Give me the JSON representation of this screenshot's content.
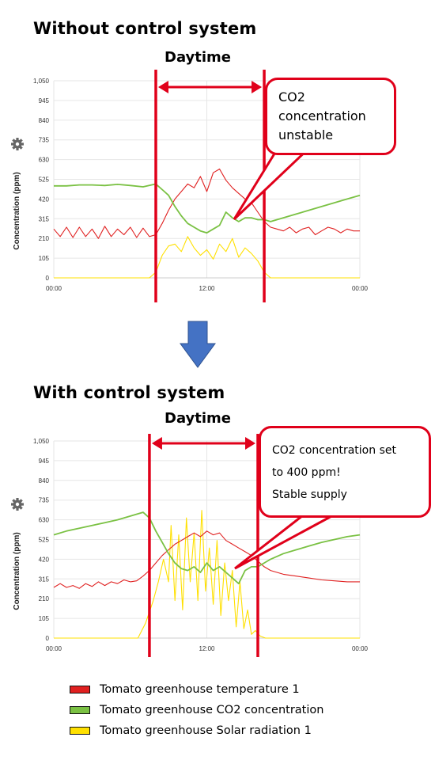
{
  "chart_data": [
    {
      "type": "line",
      "title": "Without control system",
      "annotation_top": "Daytime",
      "callout": "CO2 concentration unstable",
      "ylabel": "Concentration (ppm)",
      "yticks": [
        "0",
        "105",
        "210",
        "315",
        "420",
        "525",
        "630",
        "735",
        "840",
        "945",
        "1,050"
      ],
      "ylim": [
        0,
        1050
      ],
      "xticks": [
        "00:00",
        "12:00",
        "00:00"
      ],
      "xlim_hours": [
        0,
        24
      ],
      "daytime_hours": [
        8,
        16.5
      ],
      "series": [
        {
          "name": "Tomato greenhouse temperature 1",
          "color": "#e02020",
          "x": [
            0,
            0.5,
            1,
            1.5,
            2,
            2.5,
            3,
            3.5,
            4,
            4.5,
            5,
            5.5,
            6,
            6.5,
            7,
            7.5,
            8,
            8.5,
            9,
            9.5,
            10,
            10.5,
            11,
            11.5,
            12,
            12.5,
            13,
            13.5,
            14,
            14.5,
            15,
            15.5,
            16,
            16.5,
            17,
            17.5,
            18,
            18.5,
            19,
            19.5,
            20,
            20.5,
            21,
            21.5,
            22,
            22.5,
            23,
            23.5,
            24
          ],
          "y": [
            260,
            220,
            270,
            215,
            270,
            220,
            260,
            210,
            275,
            220,
            260,
            230,
            270,
            215,
            265,
            220,
            230,
            290,
            360,
            420,
            460,
            500,
            480,
            540,
            460,
            560,
            580,
            520,
            480,
            450,
            420,
            400,
            350,
            300,
            270,
            260,
            250,
            270,
            240,
            260,
            270,
            230,
            250,
            270,
            260,
            240,
            260,
            250,
            250
          ]
        },
        {
          "name": "Tomato greenhouse CO2 concentration",
          "color": "#7ac143",
          "x": [
            0,
            1,
            2,
            3,
            4,
            5,
            6,
            7,
            8,
            8.5,
            9,
            9.5,
            10,
            10.5,
            11,
            11.5,
            12,
            12.5,
            13,
            13.5,
            14,
            14.5,
            15,
            15.5,
            16,
            16.5,
            17,
            18,
            19,
            20,
            21,
            22,
            23,
            24
          ],
          "y": [
            490,
            490,
            495,
            495,
            492,
            498,
            492,
            485,
            500,
            470,
            440,
            380,
            330,
            290,
            270,
            250,
            240,
            260,
            280,
            350,
            320,
            300,
            320,
            320,
            310,
            310,
            300,
            320,
            340,
            360,
            380,
            400,
            420,
            440
          ]
        },
        {
          "name": "Tomato greenhouse Solar radiation 1",
          "color": "#ffe000",
          "x": [
            0,
            7.5,
            8,
            8.5,
            9,
            9.5,
            10,
            10.5,
            11,
            11.5,
            12,
            12.5,
            13,
            13.5,
            14,
            14.5,
            15,
            15.5,
            16,
            16.5,
            17,
            24
          ],
          "y": [
            0,
            0,
            30,
            120,
            170,
            180,
            140,
            220,
            160,
            120,
            150,
            100,
            180,
            140,
            210,
            110,
            160,
            130,
            90,
            30,
            0,
            0
          ]
        }
      ]
    },
    {
      "type": "line",
      "title": "With control system",
      "annotation_top": "Daytime",
      "callout_lines": [
        "CO2 concentration set",
        "to 400 ppm!",
        "Stable supply"
      ],
      "ylabel": "Concentration (ppm)",
      "yticks": [
        "0",
        "105",
        "210",
        "315",
        "420",
        "525",
        "630",
        "735",
        "840",
        "945",
        "1,050"
      ],
      "ylim": [
        0,
        1050
      ],
      "xticks": [
        "00:00",
        "12:00",
        "00:00"
      ],
      "xlim_hours": [
        0,
        24
      ],
      "daytime_hours": [
        7.5,
        16
      ],
      "series": [
        {
          "name": "Tomato greenhouse temperature 1",
          "color": "#e02020",
          "x": [
            0,
            0.5,
            1,
            1.5,
            2,
            2.5,
            3,
            3.5,
            4,
            4.5,
            5,
            5.5,
            6,
            6.5,
            7,
            7.5,
            8,
            8.5,
            9,
            9.5,
            10,
            10.5,
            11,
            11.5,
            12,
            12.5,
            13,
            13.5,
            14,
            14.5,
            15,
            15.5,
            16,
            16.5,
            17,
            18,
            19,
            20,
            21,
            22,
            23,
            24
          ],
          "y": [
            270,
            290,
            270,
            280,
            265,
            290,
            275,
            300,
            280,
            300,
            290,
            310,
            300,
            305,
            330,
            360,
            400,
            440,
            470,
            500,
            520,
            540,
            560,
            540,
            570,
            550,
            560,
            520,
            500,
            480,
            460,
            440,
            410,
            380,
            360,
            340,
            330,
            320,
            310,
            305,
            300,
            300
          ]
        },
        {
          "name": "Tomato greenhouse CO2 concentration",
          "color": "#7ac143",
          "x": [
            0,
            1,
            2,
            3,
            4,
            5,
            6,
            6.5,
            7,
            7.5,
            8,
            8.5,
            9,
            9.5,
            10,
            10.5,
            11,
            11.5,
            12,
            12.5,
            13,
            13.5,
            14,
            14.5,
            15,
            15.5,
            16,
            17,
            18,
            19,
            20,
            21,
            22,
            23,
            24
          ],
          "y": [
            550,
            570,
            585,
            600,
            615,
            630,
            650,
            660,
            670,
            640,
            570,
            510,
            450,
            400,
            370,
            360,
            380,
            350,
            400,
            360,
            380,
            350,
            320,
            290,
            360,
            380,
            380,
            420,
            450,
            470,
            490,
            510,
            525,
            540,
            550
          ]
        },
        {
          "name": "Tomato greenhouse Solar radiation 1",
          "color": "#ffe000",
          "x": [
            0,
            6.6,
            7.2,
            7.8,
            8.2,
            8.6,
            9.0,
            9.2,
            9.5,
            9.8,
            10.1,
            10.4,
            10.7,
            11.0,
            11.3,
            11.6,
            11.9,
            12.2,
            12.5,
            12.8,
            13.1,
            13.4,
            13.7,
            14.0,
            14.3,
            14.6,
            14.9,
            15.2,
            15.5,
            15.8,
            16.2,
            16.6,
            24
          ],
          "y": [
            0,
            0,
            80,
            200,
            300,
            420,
            300,
            600,
            200,
            550,
            150,
            640,
            300,
            560,
            200,
            680,
            250,
            480,
            180,
            520,
            120,
            400,
            200,
            360,
            60,
            300,
            50,
            150,
            20,
            40,
            10,
            0,
            0
          ]
        }
      ]
    }
  ],
  "legend": [
    {
      "label": "Tomato greenhouse temperature 1",
      "color": "#e02020"
    },
    {
      "label": "Tomato greenhouse CO2 concentration",
      "color": "#7ac143"
    },
    {
      "label": "Tomato greenhouse Solar radiation 1",
      "color": "#ffe000"
    }
  ],
  "colors": {
    "accent_red": "#e0001a",
    "arrow_blue": "#4472c4"
  }
}
